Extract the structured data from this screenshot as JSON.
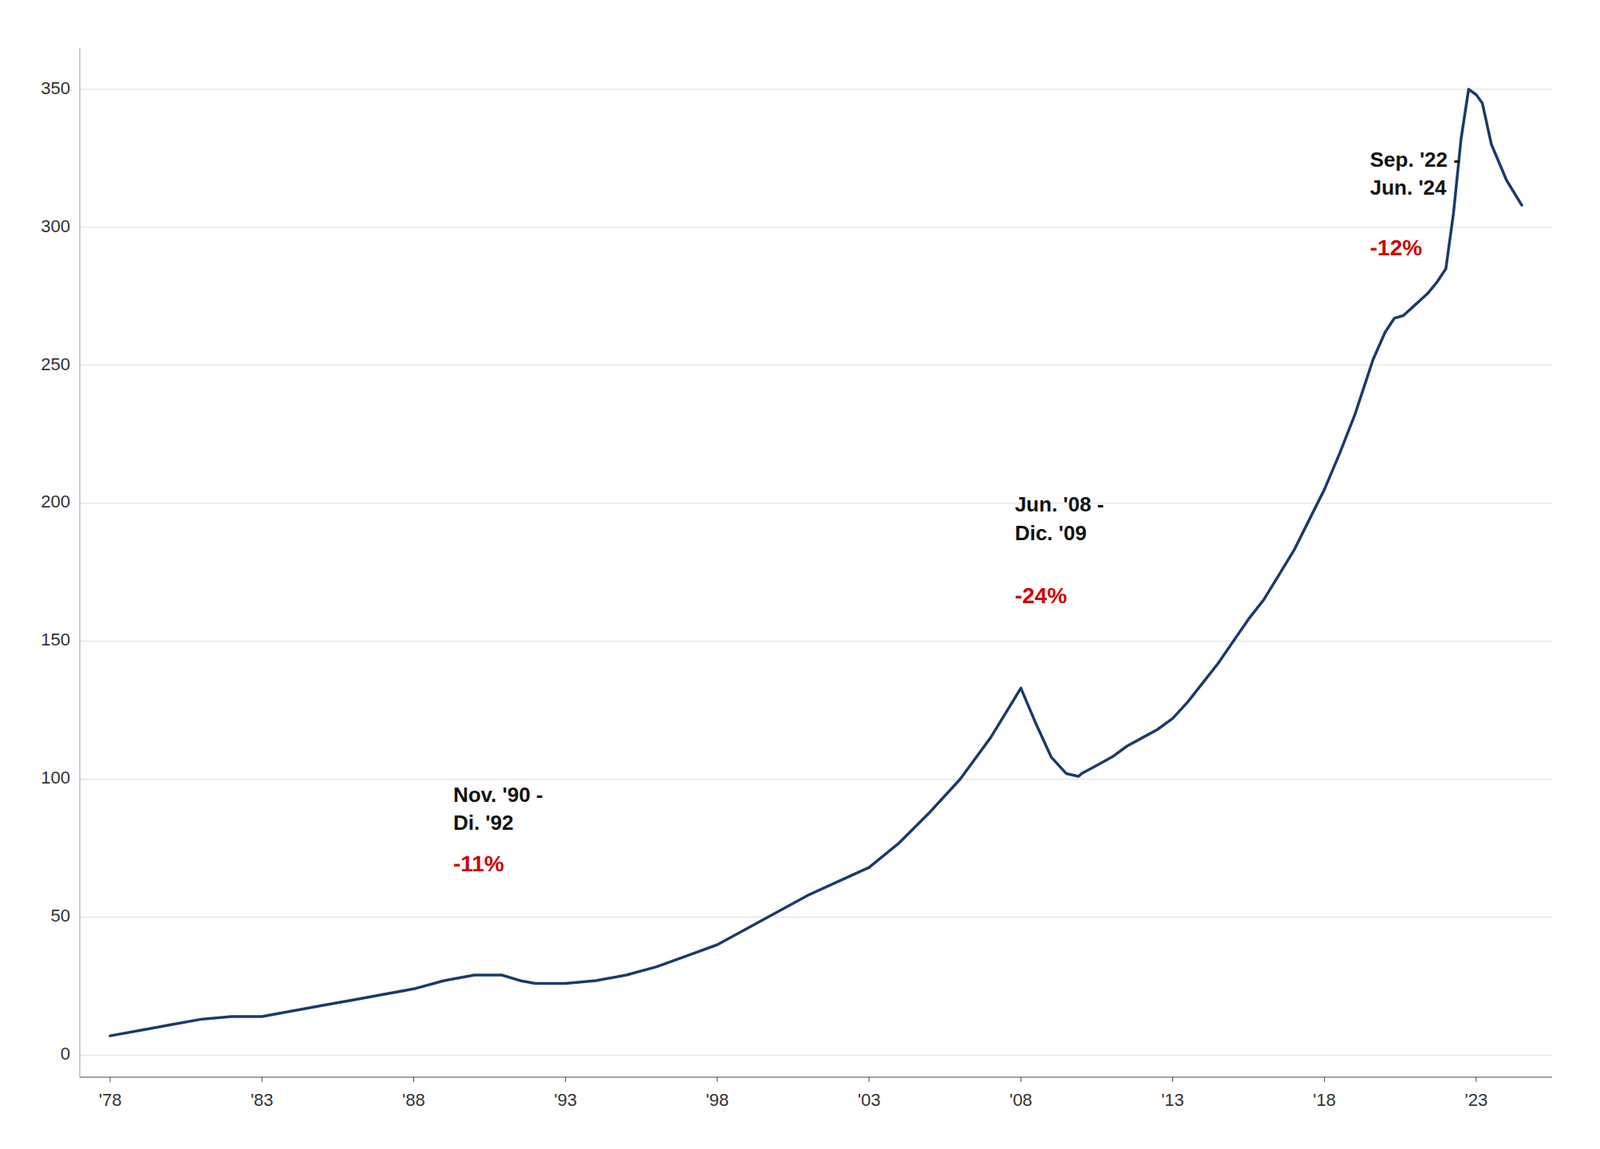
{
  "chart_data": {
    "type": "line",
    "color": "#1a3a6b",
    "grid": true,
    "xlim": [
      1977.0,
      2025.5
    ],
    "ylim": [
      -8,
      365
    ],
    "yticks": [
      0,
      50,
      100,
      150,
      200,
      250,
      300,
      350
    ],
    "xticks": [
      {
        "value": 1978,
        "label": "'78"
      },
      {
        "value": 1983,
        "label": "'83"
      },
      {
        "value": 1988,
        "label": "'88"
      },
      {
        "value": 1993,
        "label": "'93"
      },
      {
        "value": 1998,
        "label": "'98"
      },
      {
        "value": 2003,
        "label": "'03"
      },
      {
        "value": 2008,
        "label": "'08"
      },
      {
        "value": 2013,
        "label": "'13"
      },
      {
        "value": 2018,
        "label": "'18"
      },
      {
        "value": 2023,
        "label": "'23"
      }
    ],
    "x": [
      1978,
      1979,
      1980,
      1981,
      1982,
      1983,
      1984,
      1985,
      1986,
      1987,
      1988,
      1989,
      1990,
      1990.9,
      1991.5,
      1992.0,
      1993.0,
      1994,
      1995,
      1996,
      1997,
      1998,
      1999,
      2000,
      2001,
      2002,
      2003,
      2004,
      2005,
      2006,
      2007,
      2008.0,
      2008.5,
      2009.0,
      2009.5,
      2009.9,
      2010.0,
      2010.5,
      2011.0,
      2011.5,
      2012.0,
      2012.5,
      2013.0,
      2013.5,
      2014.0,
      2014.5,
      2015.0,
      2015.5,
      2016.0,
      2016.5,
      2017.0,
      2017.5,
      2018.0,
      2018.5,
      2019.0,
      2019.3,
      2019.6,
      2020.0,
      2020.3,
      2020.6,
      2021.0,
      2021.4,
      2021.7,
      2022.0,
      2022.25,
      2022.5,
      2022.75,
      2023.0,
      2023.2,
      2023.5,
      2024.0,
      2024.5
    ],
    "values": [
      7,
      9,
      11,
      13,
      14,
      14,
      16,
      18,
      20,
      22,
      24,
      27,
      29,
      29,
      27,
      26,
      26,
      27,
      29,
      32,
      36,
      40,
      46,
      52,
      58,
      63,
      68,
      77,
      88,
      100,
      115,
      133,
      120,
      108,
      102,
      101,
      102,
      105,
      108,
      112,
      115,
      118,
      122,
      128,
      135,
      142,
      150,
      158,
      165,
      174,
      183,
      194,
      205,
      218,
      232,
      242,
      252,
      262,
      267,
      268,
      272,
      276,
      280,
      285,
      305,
      332,
      350,
      348,
      345,
      330,
      317,
      308
    ],
    "annotations": [
      {
        "lines": [
          "Nov. '90 -",
          "Di. '92"
        ],
        "x": 1989.3,
        "y": 80,
        "color": "#111111"
      },
      {
        "text": "-11%",
        "x": 1989.3,
        "y": 65,
        "color": "#cc0000"
      },
      {
        "lines": [
          "Jun. '08 -",
          "Dic. '09"
        ],
        "x": 2007.8,
        "y": 185,
        "color": "#111111"
      },
      {
        "text": "-24%",
        "x": 2007.8,
        "y": 162,
        "color": "#cc0000"
      },
      {
        "lines": [
          "Sep. '22 -",
          "Jun. '24"
        ],
        "x": 2019.5,
        "y": 310,
        "color": "#111111"
      },
      {
        "text": "-12%",
        "x": 2019.5,
        "y": 288,
        "color": "#cc0000"
      }
    ]
  }
}
